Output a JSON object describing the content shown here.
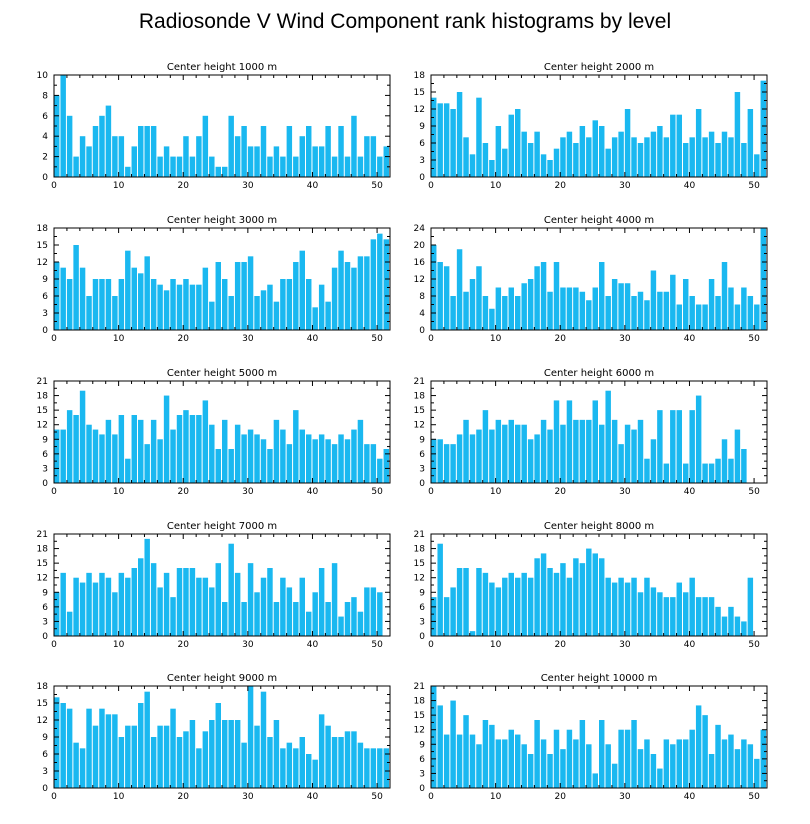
{
  "title": "Radiosonde V Wind Component rank histograms by level",
  "colors": {
    "bar": "#1ab8f0",
    "axis": "#000000"
  },
  "chart_data": [
    {
      "type": "bar",
      "title": "Center height 1000 m",
      "xlabel": "",
      "ylabel": "",
      "xlim": [
        0,
        52
      ],
      "ylim": [
        0,
        10
      ],
      "xticks": [
        0,
        10,
        20,
        30,
        40,
        50
      ],
      "yticks": [
        0,
        2,
        4,
        6,
        8,
        10
      ],
      "grid": false,
      "values": [
        8,
        10,
        6,
        2,
        4,
        3,
        5,
        6,
        7,
        4,
        4,
        1,
        3,
        5,
        5,
        5,
        2,
        3,
        2,
        2,
        4,
        2,
        4,
        6,
        2,
        1,
        1,
        6,
        4,
        5,
        3,
        3,
        5,
        2,
        3,
        2,
        5,
        2,
        4,
        5,
        3,
        3,
        5,
        2,
        5,
        2,
        6,
        2,
        4,
        4,
        2,
        3
      ]
    },
    {
      "type": "bar",
      "title": "Center height 2000 m",
      "xlabel": "",
      "ylabel": "",
      "xlim": [
        0,
        52
      ],
      "ylim": [
        0,
        18
      ],
      "xticks": [
        0,
        10,
        20,
        30,
        40,
        50
      ],
      "yticks": [
        0,
        3,
        6,
        9,
        12,
        15,
        18
      ],
      "grid": false,
      "values": [
        14,
        13,
        13,
        12,
        15,
        7,
        4,
        14,
        6,
        3,
        9,
        5,
        11,
        12,
        8,
        6,
        8,
        4,
        3,
        5,
        7,
        8,
        6,
        9,
        7,
        10,
        9,
        5,
        7,
        8,
        12,
        7,
        6,
        7,
        8,
        9,
        7,
        11,
        11,
        6,
        7,
        12,
        7,
        8,
        6,
        8,
        7,
        15,
        6,
        12,
        4,
        17
      ]
    },
    {
      "type": "bar",
      "title": "Center height 3000 m",
      "xlabel": "",
      "ylabel": "",
      "xlim": [
        0,
        52
      ],
      "ylim": [
        0,
        18
      ],
      "xticks": [
        0,
        10,
        20,
        30,
        40,
        50
      ],
      "yticks": [
        0,
        3,
        6,
        9,
        12,
        15,
        18
      ],
      "grid": false,
      "values": [
        12,
        11,
        9,
        15,
        11,
        6,
        9,
        9,
        9,
        6,
        9,
        14,
        11,
        10,
        13,
        9,
        8,
        7,
        9,
        8,
        9,
        8,
        8,
        11,
        5,
        12,
        9,
        6,
        12,
        12,
        13,
        6,
        7,
        8,
        5,
        9,
        9,
        12,
        14,
        9,
        4,
        8,
        5,
        11,
        14,
        12,
        11,
        13,
        13,
        16,
        17,
        16
      ]
    },
    {
      "type": "bar",
      "title": "Center height 4000 m",
      "xlabel": "",
      "ylabel": "",
      "xlim": [
        0,
        52
      ],
      "ylim": [
        0,
        24
      ],
      "xticks": [
        0,
        10,
        20,
        30,
        40,
        50
      ],
      "yticks": [
        0,
        4,
        8,
        12,
        16,
        20,
        24
      ],
      "grid": false,
      "values": [
        20,
        16,
        15,
        8,
        19,
        9,
        12,
        15,
        8,
        5,
        10,
        8,
        10,
        8,
        11,
        12,
        15,
        16,
        9,
        16,
        10,
        10,
        10,
        9,
        7,
        10,
        16,
        8,
        12,
        11,
        11,
        8,
        9,
        7,
        14,
        9,
        9,
        13,
        6,
        12,
        8,
        6,
        6,
        12,
        8,
        16,
        10,
        6,
        10,
        8,
        6,
        24
      ]
    },
    {
      "type": "bar",
      "title": "Center height 5000 m",
      "xlabel": "",
      "ylabel": "",
      "xlim": [
        0,
        52
      ],
      "ylim": [
        0,
        21
      ],
      "xticks": [
        0,
        10,
        20,
        30,
        40,
        50
      ],
      "yticks": [
        0,
        3,
        6,
        9,
        12,
        15,
        18,
        21
      ],
      "grid": false,
      "values": [
        11,
        11,
        15,
        14,
        19,
        12,
        11,
        10,
        13,
        10,
        14,
        5,
        14,
        13,
        8,
        13,
        9,
        18,
        11,
        14,
        15,
        14,
        14,
        17,
        12,
        7,
        13,
        7,
        12,
        10,
        11,
        10,
        9,
        7,
        13,
        11,
        8,
        15,
        11,
        10,
        9,
        10,
        9,
        8,
        10,
        9,
        11,
        13,
        8,
        8,
        5,
        7,
        6
      ]
    },
    {
      "type": "bar",
      "title": "Center height 6000 m",
      "xlabel": "",
      "ylabel": "",
      "xlim": [
        0,
        52
      ],
      "ylim": [
        0,
        21
      ],
      "xticks": [
        0,
        10,
        20,
        30,
        40,
        50
      ],
      "yticks": [
        0,
        3,
        6,
        9,
        12,
        15,
        18,
        21
      ],
      "grid": false,
      "values": [
        9,
        9,
        8,
        8,
        10,
        13,
        10,
        11,
        15,
        11,
        13,
        12,
        13,
        12,
        12,
        9,
        10,
        13,
        11,
        17,
        12,
        17,
        13,
        13,
        13,
        17,
        12,
        19,
        13,
        8,
        12,
        11,
        13,
        5,
        9,
        15,
        4,
        15,
        15,
        4,
        15,
        18,
        4,
        4,
        5,
        9,
        5,
        11,
        7
      ]
    },
    {
      "type": "bar",
      "title": "Center height 7000 m",
      "xlabel": "",
      "ylabel": "",
      "xlim": [
        0,
        52
      ],
      "ylim": [
        0,
        21
      ],
      "xticks": [
        0,
        10,
        20,
        30,
        40,
        50
      ],
      "yticks": [
        0,
        3,
        6,
        9,
        12,
        15,
        18,
        21
      ],
      "grid": false,
      "values": [
        9,
        13,
        5,
        12,
        11,
        13,
        11,
        13,
        12,
        9,
        13,
        12,
        14,
        16,
        20,
        15,
        10,
        13,
        8,
        14,
        14,
        14,
        12,
        12,
        10,
        15,
        7,
        19,
        13,
        7,
        15,
        9,
        12,
        14,
        7,
        12,
        10,
        7,
        12,
        5,
        9,
        14,
        7,
        15,
        4,
        7,
        8,
        5,
        10,
        10,
        9
      ]
    },
    {
      "type": "bar",
      "title": "Center height 8000 m",
      "xlabel": "",
      "ylabel": "",
      "xlim": [
        0,
        52
      ],
      "ylim": [
        0,
        21
      ],
      "xticks": [
        0,
        10,
        20,
        30,
        40,
        50
      ],
      "yticks": [
        0,
        3,
        6,
        9,
        12,
        15,
        18,
        21
      ],
      "grid": false,
      "values": [
        8,
        19,
        8,
        10,
        14,
        14,
        1,
        14,
        13,
        11,
        10,
        12,
        13,
        12,
        13,
        12,
        16,
        17,
        14,
        13,
        15,
        12,
        16,
        15,
        18,
        17,
        16,
        12,
        11,
        12,
        11,
        12,
        9,
        12,
        10,
        9,
        8,
        8,
        11,
        9,
        12,
        8,
        8,
        8,
        6,
        4,
        6,
        4,
        3,
        12
      ]
    },
    {
      "type": "bar",
      "title": "Center height 9000 m",
      "xlabel": "",
      "ylabel": "",
      "xlim": [
        0,
        52
      ],
      "ylim": [
        0,
        18
      ],
      "xticks": [
        0,
        10,
        20,
        30,
        40,
        50
      ],
      "yticks": [
        0,
        3,
        6,
        9,
        12,
        15,
        18
      ],
      "grid": false,
      "values": [
        16,
        15,
        14,
        8,
        7,
        14,
        11,
        14,
        13,
        13,
        9,
        11,
        11,
        15,
        17,
        9,
        11,
        11,
        14,
        9,
        10,
        12,
        7,
        10,
        12,
        15,
        12,
        12,
        12,
        8,
        18,
        11,
        17,
        9,
        12,
        7,
        8,
        7,
        9,
        6,
        5,
        13,
        11,
        9,
        9,
        10,
        10,
        8,
        7,
        7,
        7,
        7
      ]
    },
    {
      "type": "bar",
      "title": "Center height 10000 m",
      "xlabel": "",
      "ylabel": "",
      "xlim": [
        0,
        52
      ],
      "ylim": [
        0,
        21
      ],
      "xticks": [
        0,
        10,
        20,
        30,
        40,
        50
      ],
      "yticks": [
        0,
        3,
        6,
        9,
        12,
        15,
        18,
        21
      ],
      "grid": false,
      "values": [
        21,
        17,
        11,
        18,
        11,
        15,
        11,
        9,
        14,
        13,
        10,
        10,
        12,
        11,
        9,
        7,
        14,
        10,
        7,
        12,
        8,
        12,
        10,
        14,
        9,
        3,
        14,
        9,
        5,
        12,
        12,
        14,
        8,
        10,
        7,
        4,
        10,
        9,
        10,
        10,
        12,
        17,
        15,
        7,
        13,
        10,
        11,
        8,
        10,
        9,
        6,
        12
      ]
    }
  ]
}
